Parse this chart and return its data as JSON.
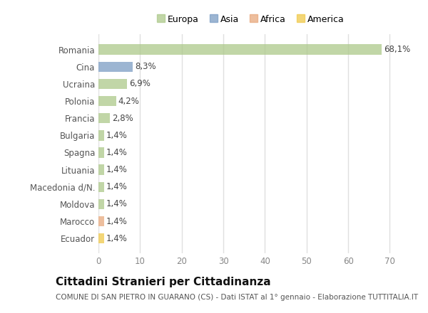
{
  "categories": [
    "Romania",
    "Cina",
    "Ucraina",
    "Polonia",
    "Francia",
    "Bulgaria",
    "Spagna",
    "Lituania",
    "Macedonia d/N.",
    "Moldova",
    "Marocco",
    "Ecuador"
  ],
  "values": [
    68.1,
    8.3,
    6.9,
    4.2,
    2.8,
    1.4,
    1.4,
    1.4,
    1.4,
    1.4,
    1.4,
    1.4
  ],
  "labels": [
    "68,1%",
    "8,3%",
    "6,9%",
    "4,2%",
    "2,8%",
    "1,4%",
    "1,4%",
    "1,4%",
    "1,4%",
    "1,4%",
    "1,4%",
    "1,4%"
  ],
  "colors": [
    "#adc98a",
    "#7b9dc4",
    "#adc98a",
    "#adc98a",
    "#adc98a",
    "#adc98a",
    "#adc98a",
    "#adc98a",
    "#adc98a",
    "#adc98a",
    "#e8a87c",
    "#f0c94a"
  ],
  "legend_labels": [
    "Europa",
    "Asia",
    "Africa",
    "America"
  ],
  "legend_colors": [
    "#adc98a",
    "#7b9dc4",
    "#e8a87c",
    "#f0c94a"
  ],
  "title": "Cittadini Stranieri per Cittadinanza",
  "subtitle": "COMUNE DI SAN PIETRO IN GUARANO (CS) - Dati ISTAT al 1° gennaio - Elaborazione TUTTITALIA.IT",
  "xlim": [
    0,
    73
  ],
  "xticks": [
    0,
    10,
    20,
    30,
    40,
    50,
    60,
    70
  ],
  "background_color": "#ffffff",
  "plot_bg_color": "#ffffff",
  "grid_color": "#e0e0e0",
  "bar_height": 0.6,
  "title_fontsize": 11,
  "subtitle_fontsize": 7.5,
  "label_fontsize": 8.5,
  "tick_fontsize": 8.5,
  "legend_fontsize": 9
}
